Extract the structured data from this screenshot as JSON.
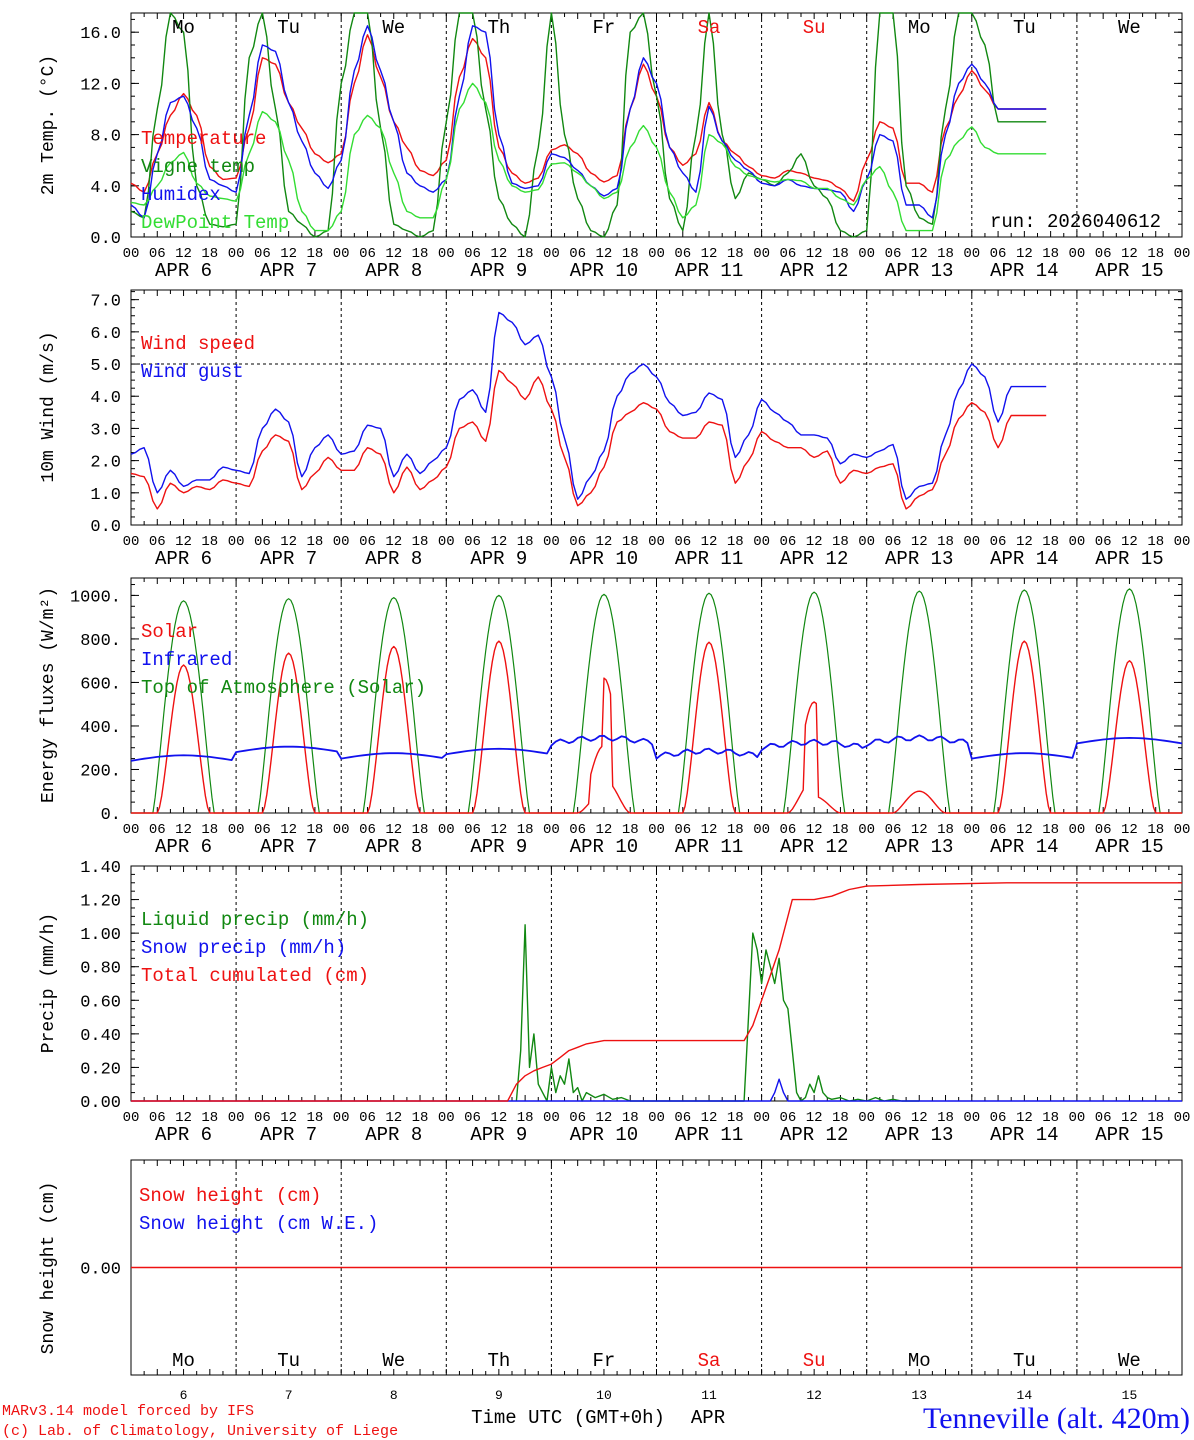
{
  "colors": {
    "red": "#ee1111",
    "green": "#118811",
    "blue": "#1111ee",
    "lightgreen": "#33dd33",
    "darkgreen": "#006600",
    "black": "#000000"
  },
  "days": {
    "dows": [
      "Mo",
      "Tu",
      "We",
      "Th",
      "Fr",
      "Sa",
      "Su",
      "Mo",
      "Tu",
      "We"
    ],
    "dow_colors": [
      "black",
      "black",
      "black",
      "black",
      "black",
      "red",
      "red",
      "black",
      "black",
      "black"
    ],
    "dates": [
      "APR  6",
      "APR  7",
      "APR  8",
      "APR  9",
      "APR 10",
      "APR 11",
      "APR 12",
      "APR 13",
      "APR 14",
      "APR 15"
    ],
    "numbers": [
      "6",
      "7",
      "8",
      "9",
      "10",
      "11",
      "12",
      "13",
      "14",
      "15"
    ],
    "hour_labels": [
      "00",
      "06",
      "12",
      "18"
    ],
    "end_label": "00"
  },
  "footer": {
    "model": "MARv3.14 model forced by IFS",
    "lab": "(c) Lab. of Climatology, University of Liege",
    "axis_title": "Time UTC (GMT+0h)",
    "month": "APR",
    "station": "Tenneville (alt. 420m)"
  },
  "chart_data": [
    {
      "type": "line",
      "id": "temp",
      "ylabel": "2m Temp. (°C)",
      "ylim": [
        0,
        17.5
      ],
      "yticks": [
        0,
        4,
        8,
        12,
        16
      ],
      "ytick_labels": [
        "0.0",
        "4.0",
        "8.0",
        "12.0",
        "16.0"
      ],
      "annotation": "run: 2026040612",
      "x_hours": [
        0,
        3,
        6,
        9,
        12,
        15,
        18,
        21,
        24,
        27,
        30,
        33,
        36,
        39,
        42,
        45,
        48,
        51,
        54,
        57,
        60,
        63,
        66,
        69,
        72,
        75,
        78,
        81,
        84,
        87,
        90,
        93,
        96,
        99,
        102,
        105,
        108,
        111,
        114,
        117,
        120,
        123,
        126,
        129,
        132,
        135,
        138,
        141,
        144,
        147,
        150,
        153,
        156,
        159,
        162,
        165,
        168,
        171,
        174,
        177,
        180,
        183,
        186,
        189,
        192,
        195,
        198,
        201,
        204,
        207,
        210,
        213,
        216,
        219,
        222,
        225,
        228,
        231,
        234,
        237,
        240
      ],
      "series": [
        {
          "name": "Temperature",
          "color": "red",
          "values": [
            4.2,
            3.5,
            6.5,
            9.5,
            11.2,
            9.5,
            5.5,
            4.5,
            4.6,
            8.5,
            14.0,
            13.5,
            10.5,
            8.5,
            6.5,
            5.8,
            6.5,
            12.0,
            15.8,
            12.5,
            9.0,
            7.0,
            5.2,
            4.8,
            6.0,
            12.5,
            15.5,
            14.0,
            7.0,
            5.0,
            4.2,
            4.6,
            6.8,
            7.2,
            6.5,
            5.0,
            4.3,
            4.8,
            10.0,
            13.5,
            11.0,
            7.0,
            5.6,
            6.5,
            10.5,
            7.5,
            6.5,
            5.5,
            4.8,
            4.6,
            5.2,
            5.0,
            4.6,
            4.4,
            3.8,
            2.8,
            6.0,
            9.0,
            8.5,
            4.2,
            4.2,
            3.5,
            8.5,
            11.0,
            13.0,
            11.5,
            10.0,
            10.0,
            10.0,
            10.0,
            10.0
          ]
        },
        {
          "name": "Vigne temp",
          "color": "green",
          "values": [
            2.0,
            1.5,
            10.0,
            17.5,
            16.0,
            4.0,
            1.0,
            0.8,
            1.0,
            14.0,
            17.5,
            10.0,
            2.0,
            1.0,
            0.0,
            0.5,
            12.0,
            17.5,
            17.5,
            8.5,
            1.0,
            0.5,
            0.0,
            0.5,
            9.0,
            17.5,
            17.5,
            10.0,
            3.0,
            1.0,
            0.0,
            7.0,
            17.5,
            8.0,
            3.0,
            0.5,
            0.0,
            2.5,
            16.0,
            17.5,
            11.0,
            3.0,
            0.5,
            8.0,
            17.5,
            8.0,
            3.0,
            5.0,
            4.5,
            4.0,
            5.0,
            6.5,
            4.0,
            3.0,
            0.5,
            0.0,
            0.5,
            17.5,
            17.5,
            4.0,
            1.5,
            1.0,
            10.0,
            17.5,
            17.5,
            15.0,
            9.0,
            9.0,
            9.0,
            9.0,
            9.0
          ]
        },
        {
          "name": "Humidex",
          "color": "blue",
          "values": [
            2.5,
            1.5,
            6.5,
            10.5,
            11.0,
            8.5,
            4.5,
            4.0,
            3.5,
            9.5,
            15.0,
            14.5,
            10.5,
            7.5,
            5.0,
            3.8,
            6.0,
            13.0,
            16.5,
            13.0,
            9.0,
            5.0,
            4.0,
            3.5,
            4.5,
            11.0,
            16.5,
            16.0,
            8.0,
            4.2,
            3.8,
            4.0,
            6.5,
            6.2,
            5.2,
            4.0,
            3.2,
            3.8,
            10.0,
            14.0,
            12.0,
            7.0,
            5.0,
            3.5,
            10.2,
            7.5,
            6.0,
            5.2,
            4.2,
            4.0,
            4.5,
            4.0,
            3.8,
            3.7,
            3.5,
            2.0,
            4.5,
            8.0,
            7.5,
            2.5,
            2.5,
            1.5,
            8.0,
            12.0,
            13.5,
            12.0,
            10.0,
            10.0,
            10.0,
            10.0,
            10.0
          ]
        },
        {
          "name": "DewPoint Temp",
          "color": "lightgreen",
          "values": [
            2.7,
            2.5,
            4.0,
            5.8,
            6.6,
            4.2,
            3.2,
            3.0,
            2.8,
            6.5,
            9.8,
            9.0,
            6.0,
            2.0,
            0.5,
            0.5,
            2.0,
            8.0,
            9.5,
            8.5,
            5.0,
            2.0,
            1.5,
            1.5,
            4.5,
            10.0,
            12.0,
            10.5,
            6.0,
            4.0,
            3.5,
            3.7,
            5.7,
            5.8,
            5.0,
            4.0,
            3.0,
            3.5,
            7.0,
            8.7,
            7.0,
            3.5,
            1.5,
            2.5,
            8.0,
            7.3,
            5.5,
            4.8,
            4.5,
            4.3,
            4.5,
            4.4,
            3.8,
            3.8,
            3.0,
            2.5,
            4.5,
            5.5,
            3.5,
            0.5,
            0.5,
            0.5,
            6.0,
            7.5,
            8.6,
            7.0,
            6.5,
            6.5,
            6.5,
            6.5,
            6.5
          ]
        }
      ]
    },
    {
      "type": "line",
      "id": "wind",
      "ylabel": "10m Wind (m/s)",
      "ylim": [
        0,
        7.3
      ],
      "yticks": [
        0,
        1,
        2,
        3,
        4,
        5,
        6,
        7
      ],
      "ytick_labels": [
        "0.0",
        "1.0",
        "2.0",
        "3.0",
        "4.0",
        "5.0",
        "6.0",
        "7.0"
      ],
      "ref_line": 5.0,
      "x_hours": [
        0,
        3,
        6,
        9,
        12,
        15,
        18,
        21,
        24,
        27,
        30,
        33,
        36,
        39,
        42,
        45,
        48,
        51,
        54,
        57,
        60,
        63,
        66,
        69,
        72,
        75,
        78,
        81,
        84,
        87,
        90,
        93,
        96,
        99,
        102,
        105,
        108,
        111,
        114,
        117,
        120,
        123,
        126,
        129,
        132,
        135,
        138,
        141,
        144,
        147,
        150,
        153,
        156,
        159,
        162,
        165,
        168,
        171,
        174,
        177,
        180,
        183,
        186,
        189,
        192,
        195,
        198,
        201,
        204,
        207,
        210,
        213,
        216,
        219,
        222,
        225,
        228,
        231,
        234,
        237,
        240
      ],
      "series": [
        {
          "name": "Wind speed",
          "color": "red",
          "values": [
            1.6,
            1.5,
            0.5,
            1.3,
            1.0,
            1.2,
            1.1,
            1.4,
            1.3,
            1.2,
            2.3,
            2.8,
            2.6,
            1.1,
            1.6,
            2.1,
            1.7,
            1.7,
            2.4,
            2.2,
            1.0,
            1.8,
            1.1,
            1.4,
            1.8,
            3.0,
            3.2,
            2.6,
            4.8,
            4.4,
            3.9,
            4.6,
            3.6,
            2.1,
            0.6,
            1.0,
            1.8,
            3.2,
            3.5,
            3.8,
            3.6,
            2.9,
            2.7,
            2.7,
            3.2,
            3.1,
            1.3,
            2.0,
            2.9,
            2.6,
            2.4,
            2.4,
            2.1,
            2.3,
            1.3,
            1.7,
            1.6,
            1.8,
            1.9,
            0.5,
            0.9,
            1.1,
            2.2,
            3.3,
            3.8,
            3.5,
            2.4,
            3.4,
            3.4,
            3.4,
            3.4
          ]
        },
        {
          "name": "Wind gust",
          "color": "blue",
          "values": [
            2.2,
            2.4,
            1.0,
            1.7,
            1.2,
            1.4,
            1.4,
            1.8,
            1.7,
            1.6,
            3.0,
            3.6,
            3.2,
            1.5,
            2.4,
            2.8,
            2.2,
            2.3,
            3.1,
            3.0,
            1.5,
            2.2,
            1.6,
            2.0,
            2.4,
            3.9,
            4.2,
            3.5,
            6.6,
            6.3,
            5.6,
            5.9,
            4.6,
            2.7,
            0.8,
            1.5,
            2.3,
            4.0,
            4.7,
            5.0,
            4.6,
            3.8,
            3.4,
            3.5,
            4.1,
            3.9,
            2.1,
            2.8,
            3.9,
            3.5,
            3.2,
            2.8,
            2.8,
            2.7,
            1.9,
            2.2,
            2.1,
            2.3,
            2.5,
            0.8,
            1.2,
            1.3,
            2.8,
            4.2,
            5.0,
            4.6,
            3.2,
            4.3,
            4.3,
            4.3,
            4.3
          ]
        }
      ]
    },
    {
      "type": "line",
      "id": "energy",
      "ylabel": "Energy fluxes (W/m²)",
      "ylim": [
        0,
        1080
      ],
      "yticks": [
        0,
        200,
        400,
        600,
        800,
        1000
      ],
      "ytick_labels": [
        "0.",
        "200.",
        "400.",
        "600.",
        "800.",
        "1000."
      ],
      "series": [
        {
          "name": "Solar",
          "color": "red",
          "peaks": [
            680,
            735,
            765,
            790,
            620,
            785,
            510,
            100,
            790,
            700
          ]
        },
        {
          "name": "Infrared",
          "color": "blue",
          "base_by_day": [
            240,
            280,
            250,
            270,
            320,
            260,
            300,
            320,
            250,
            320
          ]
        },
        {
          "name": "Top of Atmosphere (Solar)",
          "color": "green",
          "peaks": [
            975,
            985,
            990,
            1000,
            1005,
            1010,
            1015,
            1020,
            1025,
            1030
          ]
        }
      ]
    },
    {
      "type": "line",
      "id": "precip",
      "ylabel": "Precip (mm/h)",
      "ylim": [
        0,
        1.4
      ],
      "yticks": [
        0,
        0.2,
        0.4,
        0.6,
        0.8,
        1.0,
        1.2,
        1.4
      ],
      "ytick_labels": [
        "0.00",
        "0.20",
        "0.40",
        "0.60",
        "0.80",
        "1.00",
        "1.20",
        "1.40"
      ],
      "series": [
        {
          "name": "Liquid precip (mm/h)",
          "color": "green",
          "x_hours": [
            88,
            89,
            90,
            91,
            92,
            93,
            94,
            95,
            96,
            97,
            98,
            99,
            100,
            101,
            102,
            103,
            104,
            106,
            108,
            110,
            112,
            114,
            116,
            140,
            141,
            142,
            143,
            144,
            145,
            146,
            147,
            148,
            149,
            150,
            151,
            152,
            153,
            154,
            155,
            156,
            157,
            158,
            159,
            160,
            162,
            164,
            166,
            168,
            170,
            172,
            174,
            176,
            180
          ],
          "values": [
            0,
            0.3,
            1.05,
            0.2,
            0.4,
            0.1,
            0.05,
            0,
            0.2,
            0.05,
            0.15,
            0.1,
            0.25,
            0.05,
            0.08,
            0,
            0.05,
            0.02,
            0.04,
            0.01,
            0.02,
            0,
            0,
            0,
            0.5,
            1.0,
            0.9,
            0.7,
            0.9,
            0.8,
            0.7,
            0.85,
            0.6,
            0.55,
            0.3,
            0.05,
            0,
            0.02,
            0.1,
            0.05,
            0.15,
            0.05,
            0.02,
            0.01,
            0.02,
            0,
            0.01,
            0,
            0.02,
            0,
            0.01,
            0,
            0
          ]
        },
        {
          "name": "Snow precip (mm/h)",
          "color": "blue",
          "x_hours": [
            0,
            140,
            146,
            147,
            148,
            149,
            150,
            152,
            160,
            240
          ],
          "values": [
            0,
            0,
            0,
            0.05,
            0.13,
            0.05,
            0,
            0,
            0,
            0
          ]
        },
        {
          "name": "Total cumulated (cm)",
          "color": "red",
          "x_hours": [
            0,
            86,
            88,
            90,
            92,
            94,
            96,
            98,
            100,
            102,
            104,
            108,
            112,
            120,
            130,
            140,
            142,
            144,
            146,
            148,
            150,
            151,
            156,
            160,
            164,
            168,
            180,
            200,
            240
          ],
          "values": [
            0,
            0,
            0.1,
            0.15,
            0.18,
            0.2,
            0.22,
            0.26,
            0.3,
            0.32,
            0.34,
            0.36,
            0.36,
            0.36,
            0.36,
            0.36,
            0.45,
            0.6,
            0.75,
            0.9,
            1.1,
            1.2,
            1.2,
            1.22,
            1.26,
            1.28,
            1.29,
            1.3,
            1.3
          ]
        }
      ]
    },
    {
      "type": "line",
      "id": "snow",
      "ylabel": "Snow height (cm)",
      "ylim": [
        -1,
        1
      ],
      "yticks": [
        0
      ],
      "ytick_labels": [
        "0.00"
      ],
      "series": [
        {
          "name": "Snow height (cm)",
          "color": "red",
          "value": 0
        },
        {
          "name": "Snow height (cm W.E.)",
          "color": "blue",
          "value": 0
        }
      ]
    }
  ]
}
